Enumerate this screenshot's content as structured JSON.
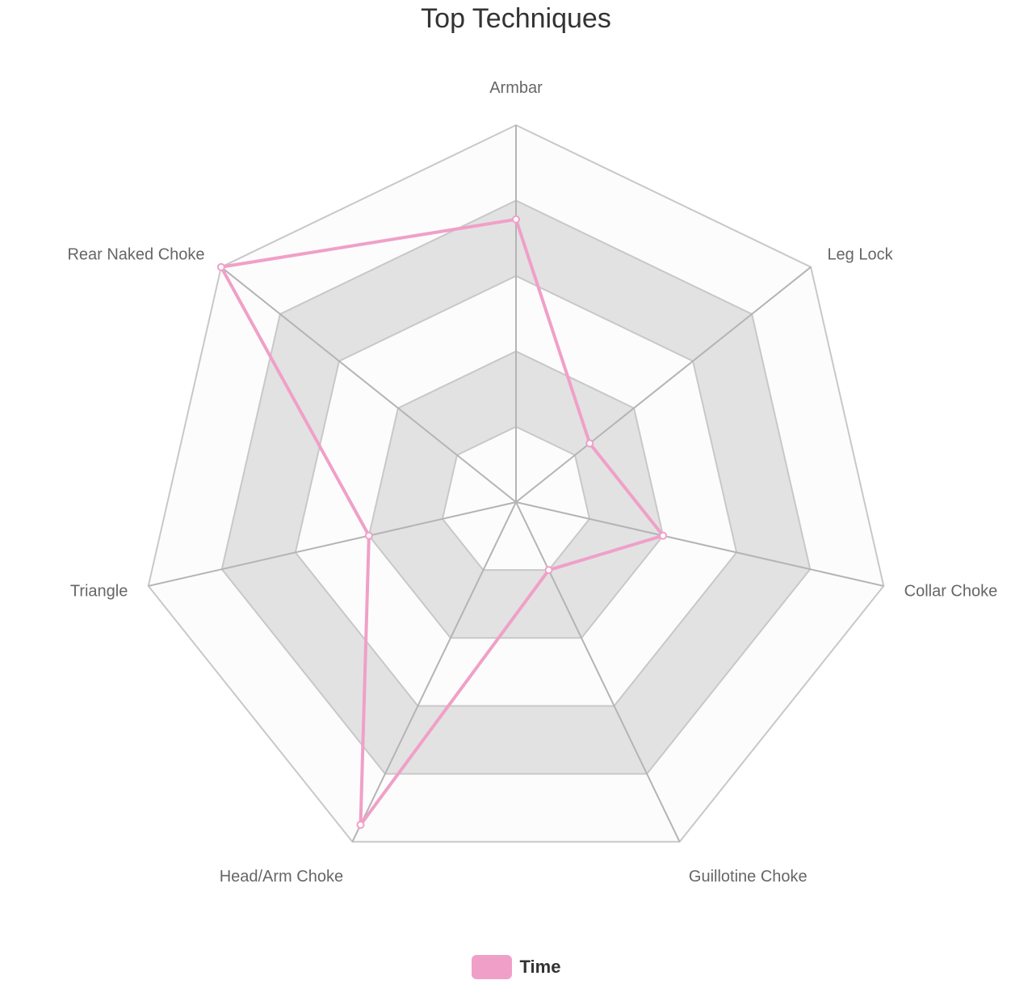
{
  "chart_data": {
    "type": "radar",
    "title": "Top Techniques",
    "axes": [
      "Armbar",
      "Leg Lock",
      "Collar Choke",
      "Guillotine Choke",
      "Head/Arm Choke",
      "Triangle",
      "Rear Naked Choke"
    ],
    "max": 5,
    "rings": 5,
    "series": [
      {
        "name": "Time",
        "values": [
          3.75,
          1.25,
          2.0,
          1.0,
          4.75,
          2.0,
          5.0
        ],
        "color": "#f0a0c8"
      }
    ],
    "legend_position": "bottom"
  }
}
